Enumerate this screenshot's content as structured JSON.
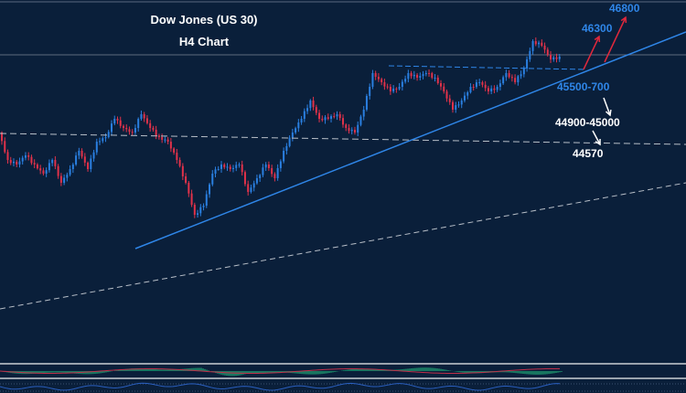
{
  "chart_data": {
    "type": "candlestick",
    "title": "Dow Jones (US 30)",
    "subtitle": "H4 Chart",
    "closes": [
      44761,
      44320,
      44247,
      44394,
      44247,
      44100,
      44320,
      43953,
      44173,
      44467,
      44173,
      44614,
      44688,
      44982,
      44835,
      44761,
      45055,
      44835,
      44688,
      44614,
      44320,
      43953,
      43438,
      43585,
      44100,
      44247,
      44173,
      44247,
      43806,
      44026,
      44247,
      44026,
      44467,
      44761,
      44982,
      45276,
      44982,
      44982,
      45055,
      44835,
      44761,
      45129,
      45717,
      45570,
      45423,
      45496,
      45717,
      45643,
      45717,
      45643,
      45423,
      45129,
      45276,
      45496,
      45570,
      45423,
      45496,
      45717,
      45570,
      45790,
      46231,
      46158,
      45937,
      45981
    ],
    "ylim": [
      42800,
      46900
    ],
    "colors": {
      "up": "#2a7fe0",
      "down": "#e0324a",
      "background": "#0a1f3a",
      "trendline": "#2f86e8"
    },
    "annotations": [
      {
        "text": "46800",
        "color": "#2f86e8"
      },
      {
        "text": "46300",
        "color": "#2f86e8"
      },
      {
        "text": "45500-700",
        "color": "#2f86e8"
      },
      {
        "text": "44900-45000",
        "color": "#ffffff"
      },
      {
        "text": "44570",
        "color": "#ffffff"
      }
    ],
    "indicators": [
      "MACD histogram",
      "RSI line"
    ]
  }
}
